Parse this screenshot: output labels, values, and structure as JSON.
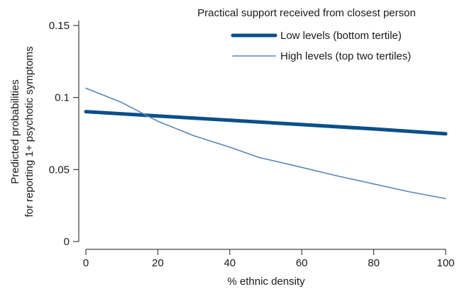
{
  "chart_data": {
    "type": "line",
    "title": "Practical support received from closest person",
    "xlabel": "% ethnic density",
    "ylabel_lines": [
      "Predicted probabilities",
      "for reporting 1+ psychotic symptoms"
    ],
    "xlim": [
      0,
      100
    ],
    "ylim": [
      0,
      0.15
    ],
    "x_ticks": [
      0,
      20,
      40,
      60,
      80,
      100
    ],
    "x_tick_labels": [
      "0",
      "20",
      "40",
      "60",
      "80",
      "100"
    ],
    "y_ticks": [
      0,
      0.05,
      0.1,
      0.15
    ],
    "y_tick_labels": [
      "0",
      "0.05",
      "0.1",
      "0.15"
    ],
    "grid": false,
    "legend_position": "top-right",
    "series": [
      {
        "name": "Low levels (bottom tertile)",
        "color": "#0b4f8a",
        "style": "thick",
        "x": [
          0,
          20,
          40,
          60,
          80,
          100
        ],
        "y": [
          0.0902,
          0.0872,
          0.0842,
          0.0812,
          0.0782,
          0.0748
        ]
      },
      {
        "name": "High levels (top two tertiles)",
        "color": "#5a86b5",
        "style": "thin",
        "x": [
          0,
          10,
          20,
          30,
          40,
          48,
          60,
          70,
          80,
          90,
          100
        ],
        "y": [
          0.1065,
          0.0965,
          0.0835,
          0.0735,
          0.0655,
          0.0585,
          0.0515,
          0.0455,
          0.04,
          0.0345,
          0.0298
        ]
      }
    ]
  }
}
